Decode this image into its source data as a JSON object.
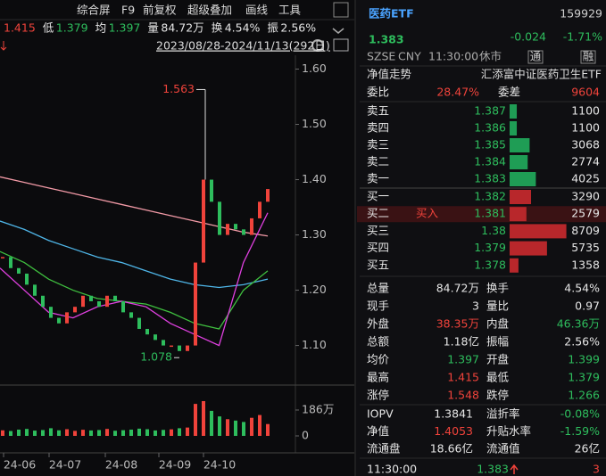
{
  "toolbar": [
    "综合屏",
    "F9",
    "前复权",
    "超级叠加",
    "画线",
    "工具"
  ],
  "summary": [
    {
      "value": "1.415",
      "color": "#f0433b"
    },
    {
      "label": "低",
      "value": "1.379",
      "color": "#2ebd5d"
    },
    {
      "label": "均",
      "value": "1.397",
      "color": "#2ebd5d"
    },
    {
      "label": "量",
      "value": "84.72万",
      "color": "#e6e6e6"
    },
    {
      "label": "换",
      "value": "4.54%",
      "color": "#e6e6e6"
    },
    {
      "label": "振",
      "value": "2.56%",
      "color": "#e6e6e6"
    }
  ],
  "date_range": "2023/08/28-2024/11/13(292日)",
  "price_chart": {
    "ylim": [
      1.03,
      1.625
    ],
    "yticks": [
      {
        "value": 1.6,
        "label": "1.60"
      },
      {
        "value": 1.5,
        "label": "1.50"
      },
      {
        "value": 1.4,
        "label": "1.40"
      },
      {
        "value": 1.3,
        "label": "1.30"
      },
      {
        "value": 1.2,
        "label": "1.20"
      },
      {
        "value": 1.1,
        "label": "1.10"
      }
    ],
    "up_color": "#f0433b",
    "down_color": "#2ebd5d",
    "close": [
      1.26,
      1.24,
      1.23,
      1.21,
      1.19,
      1.17,
      1.15,
      1.14,
      1.16,
      1.17,
      1.19,
      1.18,
      1.17,
      1.19,
      1.18,
      1.16,
      1.15,
      1.13,
      1.12,
      1.11,
      1.1,
      1.1,
      1.09,
      1.1,
      1.25,
      1.4,
      1.36,
      1.3,
      1.32,
      1.31,
      1.3,
      1.33,
      1.36,
      1.383
    ],
    "moving_averages": [
      {
        "color": "#f29aa6",
        "values": [
          1.405,
          1.395,
          1.385,
          1.375,
          1.365,
          1.355,
          1.345,
          1.335,
          1.325,
          1.315,
          1.305,
          1.298
        ]
      },
      {
        "color": "#4fb6e8",
        "values": [
          1.325,
          1.31,
          1.29,
          1.275,
          1.26,
          1.25,
          1.235,
          1.22,
          1.21,
          1.205,
          1.21,
          1.22
        ]
      },
      {
        "color": "#3fbf3f",
        "values": [
          1.27,
          1.25,
          1.22,
          1.2,
          1.185,
          1.18,
          1.175,
          1.16,
          1.14,
          1.13,
          1.2,
          1.235
        ]
      },
      {
        "color": "#e040e0",
        "values": [
          1.24,
          1.2,
          1.16,
          1.15,
          1.17,
          1.18,
          1.17,
          1.14,
          1.12,
          1.1,
          1.25,
          1.34
        ]
      }
    ],
    "max": 1.563,
    "min": 1.078,
    "x_labels": [
      "24-06",
      "24-07",
      "24-08",
      "24-09",
      "24-10"
    ]
  },
  "volume": {
    "ylim": [
      0,
      346
    ],
    "yticks": [
      {
        "value": 186,
        "label": "186万"
      },
      0
    ],
    "values": [
      40,
      35,
      45,
      50,
      38,
      42,
      55,
      40,
      48,
      36,
      44,
      39,
      42,
      50,
      37,
      41,
      45,
      52,
      48,
      39,
      43,
      47,
      55,
      60,
      230,
      250,
      180,
      140,
      120,
      110,
      100,
      130,
      150,
      85
    ]
  },
  "quote": {
    "name": "医药ETF",
    "code": "159929",
    "price": 1.383,
    "change": -0.024,
    "change_pct": "-1.71%"
  },
  "status": [
    "SZSE",
    "CNY",
    "11:30:00",
    "休市"
  ],
  "badges": [
    "通",
    "融"
  ],
  "nav_title": "净值走势",
  "fund_name": "汇添富中证医药卫生ETF",
  "order_ratio": {
    "label": "委比",
    "value": "28.47%",
    "diff_label": "委差",
    "diff": 9604
  },
  "order_book": {
    "asks": {
      "color": "#1f9d55",
      "rows": [
        {
          "label": "卖五",
          "price": 1.387,
          "volume": 1100
        },
        {
          "label": "卖四",
          "price": 1.386,
          "volume": 1100
        },
        {
          "label": "卖三",
          "price": 1.385,
          "volume": 3068
        },
        {
          "label": "卖二",
          "price": 1.384,
          "volume": 2774
        },
        {
          "label": "卖一",
          "price": 1.383,
          "volume": 4025
        }
      ]
    },
    "bids": {
      "color": "#b8272b",
      "rows": [
        {
          "label": "买一",
          "price": 1.382,
          "volume": 3290
        },
        {
          "label": "买二",
          "price": 1.381,
          "volume": 2579,
          "action": "买入"
        },
        {
          "label": "买三",
          "price": 1.38,
          "volume": 8709
        },
        {
          "label": "买四",
          "price": 1.379,
          "volume": 5735
        },
        {
          "label": "买五",
          "price": 1.378,
          "volume": 1358
        }
      ]
    }
  },
  "stats": [
    [
      {
        "label": "总量",
        "value": "84.72万",
        "color": "#e6e6e6"
      },
      {
        "label": "换手",
        "value": "4.54%",
        "color": "#e6e6e6"
      }
    ],
    [
      {
        "label": "现手",
        "value": "3",
        "color": "#e6e6e6"
      },
      {
        "label": "量比",
        "value": "0.97",
        "color": "#e6e6e6"
      }
    ],
    [
      {
        "label": "外盘",
        "value": "38.35万",
        "color": "#f0433b"
      },
      {
        "label": "内盘",
        "value": "46.36万",
        "color": "#2ebd5d"
      }
    ],
    [
      {
        "label": "总额",
        "value": "1.18亿",
        "color": "#e6e6e6"
      },
      {
        "label": "振幅",
        "value": "2.56%",
        "color": "#e6e6e6"
      }
    ],
    [
      {
        "label": "均价",
        "value": "1.397",
        "color": "#2ebd5d"
      },
      {
        "label": "开盘",
        "value": "1.399",
        "color": "#2ebd5d"
      }
    ],
    [
      {
        "label": "最高",
        "value": "1.415",
        "color": "#f0433b"
      },
      {
        "label": "最低",
        "value": "1.379",
        "color": "#2ebd5d"
      }
    ],
    [
      {
        "label": "涨停",
        "value": "1.548",
        "color": "#f0433b"
      },
      {
        "label": "跌停",
        "value": "1.266",
        "color": "#2ebd5d"
      }
    ]
  ],
  "fund_stats": [
    [
      {
        "label": "IOPV",
        "value": "1.3841",
        "color": "#e6e6e6"
      },
      {
        "label": "溢折率",
        "value": "-0.08%",
        "color": "#2ebd5d"
      }
    ],
    [
      {
        "label": "净值",
        "value": "1.4053",
        "color": "#f0433b"
      },
      {
        "label": "升贴水率",
        "value": "-1.59%",
        "color": "#2ebd5d"
      }
    ],
    [
      {
        "label": "流通盘",
        "value": "18.66亿",
        "color": "#e6e6e6"
      },
      {
        "label": "流通值",
        "value": "26亿",
        "color": "#e6e6e6"
      }
    ]
  ],
  "last_tick": {
    "time": "11:30:00",
    "price": 1.383,
    "volume": 3
  }
}
